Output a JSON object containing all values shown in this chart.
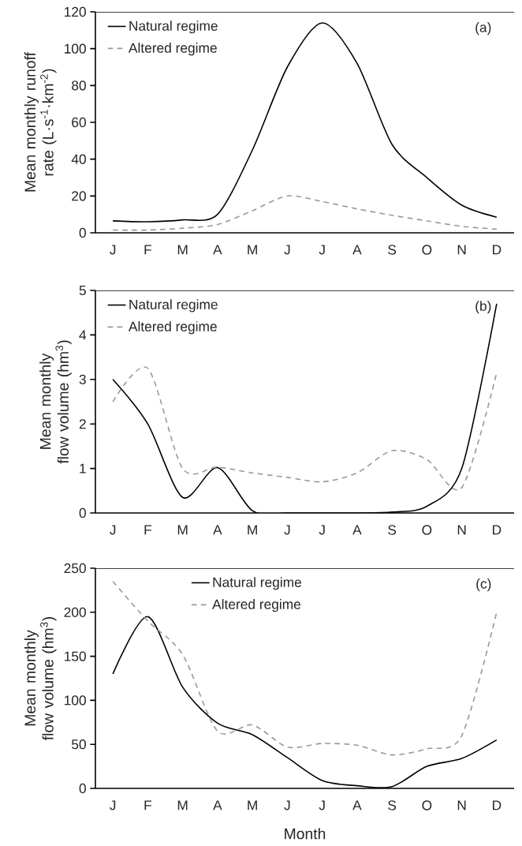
{
  "chart_data": [
    {
      "type": "line",
      "ylabel": "Mean monthly runoff rate (L·s$^{-1}$·km$^{-2}$)",
      "categories": [
        "J",
        "F",
        "M",
        "A",
        "M",
        "J",
        "J",
        "A",
        "S",
        "O",
        "N",
        "D"
      ],
      "ylim": [
        0,
        120
      ],
      "yticks": [
        0,
        20,
        40,
        60,
        80,
        100,
        120
      ],
      "legend": "top left",
      "annotations": [
        "(a)"
      ],
      "series": [
        {
          "name": "Natural regime",
          "color": "#000000",
          "line_style": "solid",
          "values": [
            6.5,
            6,
            7,
            10,
            45,
            90,
            114,
            92,
            48,
            30,
            15,
            8.5
          ]
        },
        {
          "name": "Altered regime",
          "color": "#999999",
          "line_style": "dashed",
          "values": [
            1.5,
            1.5,
            2.5,
            4.5,
            12,
            20,
            17,
            13,
            9.5,
            6.5,
            3.5,
            2
          ]
        }
      ]
    },
    {
      "type": "line",
      "ylabel": "Mean monthly flow volume (hm$^{3}$)",
      "categories": [
        "J",
        "F",
        "M",
        "A",
        "M",
        "J",
        "J",
        "A",
        "S",
        "O",
        "N",
        "D"
      ],
      "ylim": [
        0,
        5
      ],
      "yticks": [
        0,
        1,
        2,
        3,
        4,
        5
      ],
      "legend": "top left",
      "annotations": [
        "(b)"
      ],
      "series": [
        {
          "name": "Natural regime",
          "color": "#000000",
          "line_style": "solid",
          "values": [
            3.0,
            2.0,
            0.35,
            1.02,
            0.05,
            0,
            0,
            0,
            0.02,
            0.15,
            1.0,
            4.7
          ]
        },
        {
          "name": "Altered regime",
          "color": "#999999",
          "line_style": "dashed",
          "values": [
            2.5,
            3.25,
            1.0,
            1.03,
            0.9,
            0.8,
            0.7,
            0.9,
            1.4,
            1.2,
            0.57,
            3.15
          ]
        }
      ]
    },
    {
      "type": "line",
      "xlabel": "Month",
      "ylabel": "Mean monthly flow volume (hm$^{3}$)",
      "categories": [
        "J",
        "F",
        "M",
        "A",
        "M",
        "J",
        "J",
        "A",
        "S",
        "O",
        "N",
        "D"
      ],
      "ylim": [
        0,
        250
      ],
      "yticks": [
        0,
        50,
        100,
        150,
        200,
        250
      ],
      "legend": "top",
      "annotations": [
        "(c)"
      ],
      "series": [
        {
          "name": "Natural regime",
          "color": "#000000",
          "line_style": "solid",
          "values": [
            130,
            195,
            115,
            74,
            61,
            35,
            9,
            3,
            2,
            25,
            34,
            55
          ]
        },
        {
          "name": "Altered regime",
          "color": "#999999",
          "line_style": "dashed",
          "values": [
            235,
            190,
            152,
            65,
            72,
            47,
            51,
            49,
            38,
            45,
            60,
            200
          ]
        }
      ]
    }
  ]
}
